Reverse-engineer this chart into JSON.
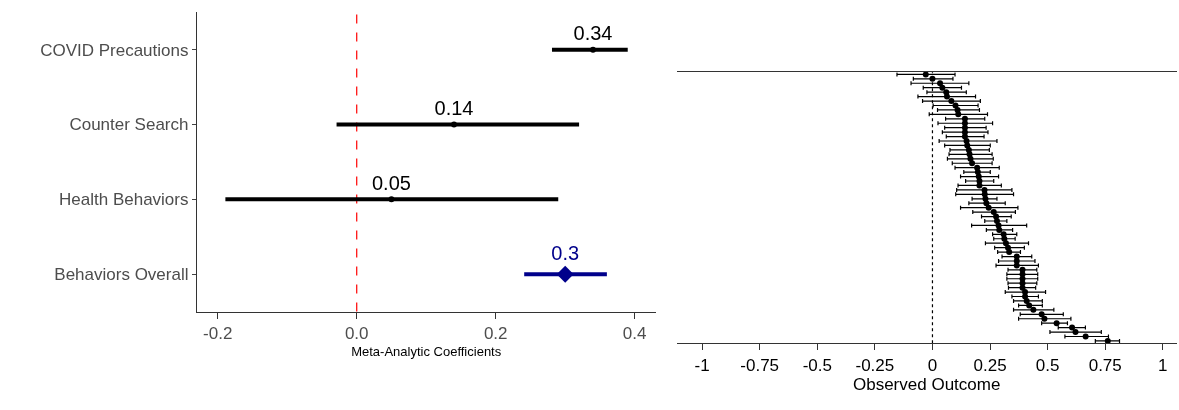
{
  "chart_data": [
    {
      "type": "scatter",
      "orientation": "horizontal",
      "xlabel": "Meta-Analytic Coefficients",
      "categories": [
        "COVID Precautions",
        "Counter Search",
        "Health Behaviors",
        "Behaviors Overall"
      ],
      "series": [
        {
          "color": "#000000",
          "marker": "circle",
          "values": [
            0.34,
            0.14,
            0.05,
            null
          ],
          "errors": [
            [
              0.281,
              0.39
            ],
            [
              -0.029,
              0.32
            ],
            [
              -0.189,
              0.29
            ],
            null
          ]
        },
        {
          "color": "#00008b",
          "marker": "diamond",
          "values": [
            null,
            null,
            null,
            0.3
          ],
          "errors": [
            null,
            null,
            null,
            [
              0.241,
              0.36
            ]
          ]
        }
      ],
      "data_labels": true,
      "xlim": [
        -0.23,
        0.43
      ],
      "xticks": [
        -0.2,
        {
          "value": 0,
          "label": "0.0"
        },
        0.2,
        0.4
      ],
      "ref_lines": [
        {
          "axis": "x",
          "value": 0,
          "color": "#ff0000",
          "line_style": "dashed"
        }
      ],
      "grid": false
    },
    {
      "type": "scatter",
      "orientation": "horizontal",
      "xlabel": "Observed Outcome",
      "tick_labels": "x",
      "marker": "circle",
      "color": "#000000",
      "categories": [
        null,
        null,
        null,
        null,
        null,
        null,
        null,
        null,
        null,
        null,
        null,
        null,
        null,
        null,
        null,
        null,
        null,
        null,
        null,
        null,
        null,
        null,
        null,
        null,
        null,
        null,
        null,
        null,
        null,
        null,
        null,
        null,
        null,
        null,
        null,
        null,
        null,
        null,
        null,
        null,
        null,
        null,
        null,
        null,
        null,
        null,
        null,
        null,
        null,
        null,
        null,
        null,
        null,
        null,
        null,
        null,
        null,
        null,
        null,
        null,
        null
      ],
      "values": [
        -0.029,
        0,
        0.033,
        0.043,
        0.06,
        0.063,
        0.082,
        0.1,
        0.109,
        0.112,
        0.141,
        0.141,
        0.141,
        0.141,
        0.141,
        0.148,
        0.151,
        0.158,
        0.161,
        0.165,
        0.172,
        0.194,
        0.197,
        0.201,
        0.204,
        0.204,
        0.226,
        0.227,
        0.23,
        0.234,
        0.244,
        0.266,
        0.276,
        0.28,
        0.287,
        0.29,
        0.309,
        0.312,
        0.319,
        0.328,
        0.333,
        0.366,
        0.366,
        0.366,
        0.391,
        0.391,
        0.391,
        0.391,
        0.391,
        0.402,
        0.402,
        0.409,
        0.42,
        0.438,
        0.474,
        0.486,
        0.539,
        0.606,
        0.621,
        0.665,
        0.761
      ],
      "errors": [
        [
          -0.154,
          0.098
        ],
        [
          -0.083,
          0.089
        ],
        [
          -0.093,
          0.158
        ],
        [
          -0.04,
          0.126
        ],
        [
          -0.024,
          0.147
        ],
        [
          -0.063,
          0.187
        ],
        [
          -0.043,
          0.208
        ],
        [
          0.003,
          0.198
        ],
        [
          0.022,
          0.204
        ],
        [
          -0.014,
          0.239
        ],
        [
          0.057,
          0.227
        ],
        [
          0.024,
          0.261
        ],
        [
          0.053,
          0.233
        ],
        [
          0.043,
          0.241
        ],
        [
          0.06,
          0.224
        ],
        [
          0.029,
          0.28
        ],
        [
          0.053,
          0.251
        ],
        [
          0.076,
          0.247
        ],
        [
          0.072,
          0.259
        ],
        [
          0.065,
          0.264
        ],
        [
          0.086,
          0.259
        ],
        [
          0.098,
          0.29
        ],
        [
          0.136,
          0.251
        ],
        [
          0.122,
          0.287
        ],
        [
          0.144,
          0.266
        ],
        [
          0.111,
          0.299
        ],
        [
          0.105,
          0.345
        ],
        [
          0.101,
          0.352
        ],
        [
          0.172,
          0.28
        ],
        [
          0.158,
          0.316
        ],
        [
          0.122,
          0.371
        ],
        [
          0.175,
          0.36
        ],
        [
          0.213,
          0.342
        ],
        [
          0.227,
          0.323
        ],
        [
          0.17,
          0.409
        ],
        [
          0.234,
          0.348
        ],
        [
          0.261,
          0.366
        ],
        [
          0.266,
          0.359
        ],
        [
          0.23,
          0.417
        ],
        [
          0.27,
          0.399
        ],
        [
          0.283,
          0.382
        ],
        [
          0.302,
          0.431
        ],
        [
          0.287,
          0.445
        ],
        [
          0.276,
          0.46
        ],
        [
          0.328,
          0.453
        ],
        [
          0.323,
          0.457
        ],
        [
          0.323,
          0.457
        ],
        [
          0.328,
          0.453
        ],
        [
          0.33,
          0.448
        ],
        [
          0.316,
          0.491
        ],
        [
          0.345,
          0.46
        ],
        [
          0.352,
          0.477
        ],
        [
          0.374,
          0.477
        ],
        [
          0.352,
          0.527
        ],
        [
          0.381,
          0.568
        ],
        [
          0.374,
          0.601
        ],
        [
          0.474,
          0.586
        ],
        [
          0.546,
          0.664
        ],
        [
          0.51,
          0.733
        ],
        [
          0.575,
          0.764
        ],
        [
          0.707,
          0.812
        ]
      ],
      "xlim": [
        -1.11,
        1.06
      ],
      "xticks": [
        -1,
        -0.75,
        -0.5,
        -0.25,
        0,
        0.25,
        0.5,
        0.75,
        1
      ],
      "ref_lines": [
        {
          "axis": "x",
          "value": 0,
          "color": "#000000",
          "line_style": "dotted"
        }
      ],
      "grid": false
    }
  ]
}
